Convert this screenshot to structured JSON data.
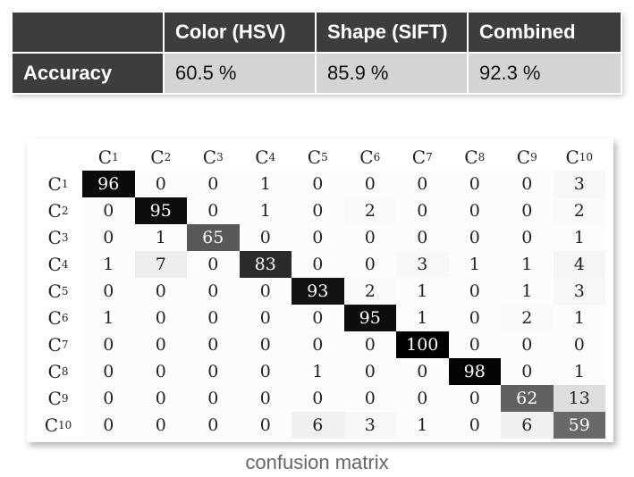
{
  "accuracy_table": {
    "headers": [
      "",
      "Color (HSV)",
      "Shape (SIFT)",
      "Combined"
    ],
    "row_label": "Accuracy",
    "values": [
      "60.5 %",
      "85.9 %",
      "92.3 %"
    ]
  },
  "confusion_matrix": {
    "labels": [
      {
        "base": "C",
        "sub": "1"
      },
      {
        "base": "C",
        "sub": "2"
      },
      {
        "base": "C",
        "sub": "3"
      },
      {
        "base": "C",
        "sub": "4"
      },
      {
        "base": "C",
        "sub": "5"
      },
      {
        "base": "C",
        "sub": "6"
      },
      {
        "base": "C",
        "sub": "7"
      },
      {
        "base": "C",
        "sub": "8"
      },
      {
        "base": "C",
        "sub": "9"
      },
      {
        "base": "C",
        "sub": "10"
      }
    ],
    "values": [
      [
        96,
        0,
        0,
        1,
        0,
        0,
        0,
        0,
        0,
        3
      ],
      [
        0,
        95,
        0,
        1,
        0,
        2,
        0,
        0,
        0,
        2
      ],
      [
        0,
        1,
        65,
        0,
        0,
        0,
        0,
        0,
        0,
        1
      ],
      [
        1,
        7,
        0,
        83,
        0,
        0,
        3,
        1,
        1,
        4
      ],
      [
        0,
        0,
        0,
        0,
        93,
        2,
        1,
        0,
        1,
        3
      ],
      [
        1,
        0,
        0,
        0,
        0,
        95,
        1,
        0,
        2,
        1
      ],
      [
        0,
        0,
        0,
        0,
        0,
        0,
        100,
        0,
        0,
        0
      ],
      [
        0,
        0,
        0,
        0,
        1,
        0,
        0,
        98,
        0,
        1
      ],
      [
        0,
        0,
        0,
        0,
        0,
        0,
        0,
        0,
        62,
        13
      ],
      [
        0,
        0,
        0,
        0,
        6,
        3,
        1,
        0,
        6,
        59
      ]
    ]
  },
  "caption": "confusion matrix"
}
